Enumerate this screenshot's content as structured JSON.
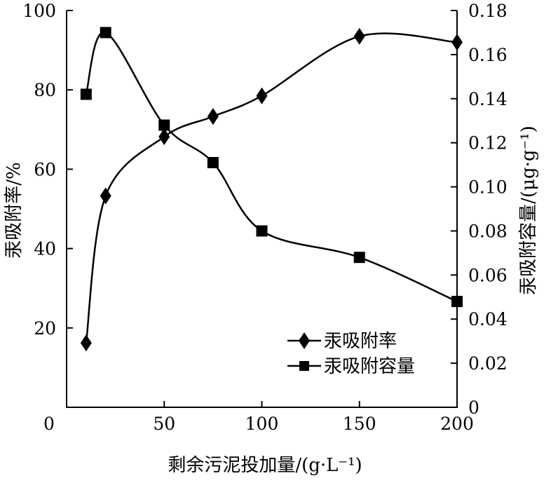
{
  "chart_data": {
    "type": "line",
    "title": "",
    "xlabel": "剩余污泥投加量/(g·L⁻¹)",
    "ylabel_left": "汞吸附率/%",
    "ylabel_right": "汞吸附容量/(μg·g⁻¹)",
    "xlim": [
      0,
      200
    ],
    "ylim_left": [
      0,
      100
    ],
    "ylim_right": [
      0,
      0.18
    ],
    "x_ticks": [
      "0",
      "50",
      "100",
      "150",
      "200"
    ],
    "y_left_ticks": [
      "20",
      "40",
      "60",
      "80",
      "100"
    ],
    "y_right_ticks": [
      "0",
      "0.02",
      "0.04",
      "0.06",
      "0.08",
      "0.10",
      "0.12",
      "0.14",
      "0.16",
      "0.18"
    ],
    "grid": false,
    "legend_position": "bottom-right",
    "series": [
      {
        "name": "汞吸附率",
        "axis": "left",
        "marker": "diamond",
        "x": [
          10,
          20,
          50,
          75,
          100,
          150,
          200
        ],
        "y": [
          16.2,
          53.3,
          68.2,
          73.3,
          78.5,
          93.5,
          92.0
        ]
      },
      {
        "name": "汞吸附容量",
        "axis": "right",
        "marker": "square",
        "x": [
          10,
          20,
          50,
          75,
          100,
          150,
          200
        ],
        "y": [
          0.142,
          0.17,
          0.128,
          0.111,
          0.08,
          0.068,
          0.048
        ]
      }
    ]
  }
}
